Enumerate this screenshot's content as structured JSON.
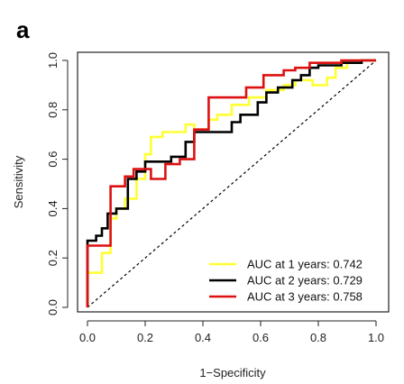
{
  "panel_label": "a",
  "chart_data": {
    "type": "line",
    "title": "",
    "xlabel": "1−Specificity",
    "ylabel": "Sensitivity",
    "xlim": [
      0,
      1
    ],
    "ylim": [
      0,
      1
    ],
    "x_ticks": [
      "0.0",
      "0.2",
      "0.4",
      "0.6",
      "0.8",
      "1.0"
    ],
    "y_ticks": [
      "0.0",
      "0.2",
      "0.4",
      "0.6",
      "0.8",
      "1.0"
    ],
    "grid": false,
    "legend_position": "bottom-right",
    "reference_line": {
      "style": "dashed",
      "color": "#000000",
      "points": [
        [
          0,
          0
        ],
        [
          1,
          1
        ]
      ]
    },
    "series": [
      {
        "name": "AUC at 1 years: 0.742",
        "color": "#ffff33",
        "points": [
          [
            0,
            0
          ],
          [
            0,
            0.14
          ],
          [
            0.05,
            0.14
          ],
          [
            0.05,
            0.22
          ],
          [
            0.08,
            0.22
          ],
          [
            0.08,
            0.36
          ],
          [
            0.1,
            0.36
          ],
          [
            0.1,
            0.4
          ],
          [
            0.13,
            0.4
          ],
          [
            0.13,
            0.44
          ],
          [
            0.17,
            0.44
          ],
          [
            0.17,
            0.52
          ],
          [
            0.2,
            0.52
          ],
          [
            0.2,
            0.62
          ],
          [
            0.22,
            0.62
          ],
          [
            0.22,
            0.69
          ],
          [
            0.26,
            0.69
          ],
          [
            0.26,
            0.71
          ],
          [
            0.34,
            0.71
          ],
          [
            0.34,
            0.74
          ],
          [
            0.37,
            0.74
          ],
          [
            0.37,
            0.72
          ],
          [
            0.42,
            0.72
          ],
          [
            0.42,
            0.76
          ],
          [
            0.45,
            0.76
          ],
          [
            0.45,
            0.78
          ],
          [
            0.5,
            0.78
          ],
          [
            0.5,
            0.82
          ],
          [
            0.56,
            0.82
          ],
          [
            0.56,
            0.85
          ],
          [
            0.62,
            0.85
          ],
          [
            0.62,
            0.88
          ],
          [
            0.68,
            0.88
          ],
          [
            0.68,
            0.9
          ],
          [
            0.72,
            0.9
          ],
          [
            0.72,
            0.92
          ],
          [
            0.78,
            0.92
          ],
          [
            0.78,
            0.9
          ],
          [
            0.83,
            0.9
          ],
          [
            0.83,
            0.93
          ],
          [
            0.86,
            0.93
          ],
          [
            0.86,
            0.97
          ],
          [
            0.9,
            0.97
          ],
          [
            0.9,
            0.99
          ],
          [
            0.95,
            0.99
          ],
          [
            0.95,
            1
          ],
          [
            1,
            1
          ]
        ]
      },
      {
        "name": "AUC at 2 years: 0.729",
        "color": "#000000",
        "points": [
          [
            0,
            0
          ],
          [
            0,
            0.27
          ],
          [
            0.03,
            0.27
          ],
          [
            0.03,
            0.29
          ],
          [
            0.05,
            0.29
          ],
          [
            0.05,
            0.32
          ],
          [
            0.07,
            0.32
          ],
          [
            0.07,
            0.38
          ],
          [
            0.1,
            0.38
          ],
          [
            0.1,
            0.4
          ],
          [
            0.14,
            0.4
          ],
          [
            0.14,
            0.52
          ],
          [
            0.17,
            0.52
          ],
          [
            0.17,
            0.55
          ],
          [
            0.2,
            0.55
          ],
          [
            0.2,
            0.59
          ],
          [
            0.29,
            0.59
          ],
          [
            0.29,
            0.61
          ],
          [
            0.34,
            0.61
          ],
          [
            0.34,
            0.67
          ],
          [
            0.37,
            0.67
          ],
          [
            0.37,
            0.71
          ],
          [
            0.5,
            0.71
          ],
          [
            0.5,
            0.75
          ],
          [
            0.53,
            0.75
          ],
          [
            0.53,
            0.78
          ],
          [
            0.59,
            0.78
          ],
          [
            0.59,
            0.83
          ],
          [
            0.62,
            0.83
          ],
          [
            0.62,
            0.87
          ],
          [
            0.66,
            0.87
          ],
          [
            0.66,
            0.89
          ],
          [
            0.71,
            0.89
          ],
          [
            0.71,
            0.92
          ],
          [
            0.74,
            0.92
          ],
          [
            0.74,
            0.94
          ],
          [
            0.77,
            0.94
          ],
          [
            0.77,
            0.97
          ],
          [
            0.8,
            0.97
          ],
          [
            0.8,
            0.98
          ],
          [
            0.88,
            0.98
          ],
          [
            0.88,
            0.99
          ],
          [
            0.95,
            0.99
          ],
          [
            0.95,
            1
          ],
          [
            1,
            1
          ]
        ]
      },
      {
        "name": "AUC at 3 years: 0.758",
        "color": "#dd1111",
        "points": [
          [
            0,
            0
          ],
          [
            0,
            0.25
          ],
          [
            0.08,
            0.25
          ],
          [
            0.08,
            0.49
          ],
          [
            0.13,
            0.49
          ],
          [
            0.13,
            0.53
          ],
          [
            0.16,
            0.53
          ],
          [
            0.16,
            0.56
          ],
          [
            0.22,
            0.56
          ],
          [
            0.22,
            0.52
          ],
          [
            0.27,
            0.52
          ],
          [
            0.27,
            0.58
          ],
          [
            0.32,
            0.58
          ],
          [
            0.32,
            0.6
          ],
          [
            0.37,
            0.6
          ],
          [
            0.37,
            0.72
          ],
          [
            0.42,
            0.72
          ],
          [
            0.42,
            0.85
          ],
          [
            0.55,
            0.85
          ],
          [
            0.55,
            0.89
          ],
          [
            0.61,
            0.89
          ],
          [
            0.61,
            0.94
          ],
          [
            0.68,
            0.94
          ],
          [
            0.68,
            0.96
          ],
          [
            0.72,
            0.96
          ],
          [
            0.72,
            0.97
          ],
          [
            0.77,
            0.97
          ],
          [
            0.77,
            0.99
          ],
          [
            0.88,
            0.99
          ],
          [
            0.88,
            1
          ],
          [
            1,
            1
          ]
        ]
      }
    ]
  }
}
